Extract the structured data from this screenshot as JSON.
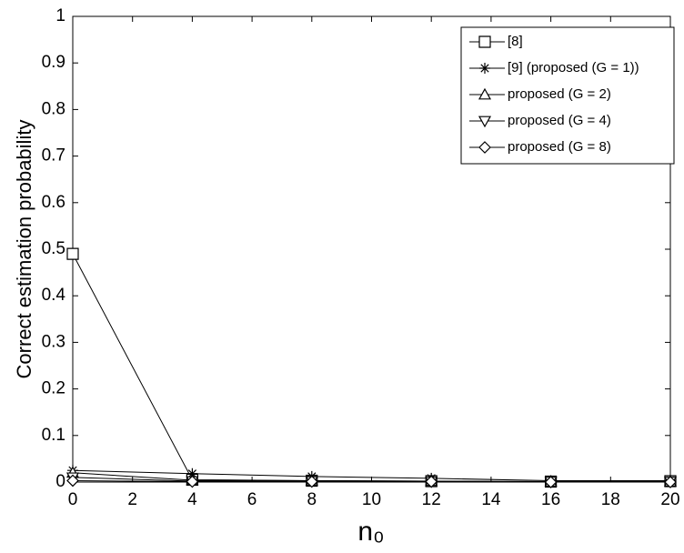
{
  "chart_data": {
    "type": "line",
    "xlabel": "n₀",
    "ylabel": "Correct estimation probability",
    "x": [
      0,
      4,
      8,
      12,
      16,
      20
    ],
    "series": [
      {
        "name": "[8]",
        "color": "#000000",
        "marker": "square",
        "values": [
          0.49,
          0.005,
          0.003,
          0.002,
          0.001,
          0.002
        ]
      },
      {
        "name": "[9] (proposed (G = 1))",
        "color": "#000000",
        "marker": "star",
        "values": [
          0.025,
          0.018,
          0.012,
          0.008,
          0.003,
          0.003
        ]
      },
      {
        "name": "proposed (G = 2)",
        "color": "#000000",
        "marker": "triangle-up",
        "values": [
          0.02,
          0.004,
          0.003,
          0.002,
          0.001,
          0.001
        ]
      },
      {
        "name": "proposed (G = 4)",
        "color": "#000000",
        "marker": "triangle-down",
        "values": [
          0.01,
          0.002,
          0.002,
          0.001,
          0.001,
          0.001
        ]
      },
      {
        "name": "proposed (G = 8)",
        "color": "#000000",
        "marker": "diamond",
        "values": [
          0.003,
          0.001,
          0.001,
          0.001,
          0.0,
          0.0
        ]
      }
    ],
    "xlim": [
      0,
      20
    ],
    "xticks": [
      0,
      2,
      4,
      6,
      8,
      10,
      12,
      14,
      16,
      18,
      20
    ],
    "ylim": [
      0,
      1
    ],
    "yticks": [
      0,
      0.1,
      0.2,
      0.3,
      0.4,
      0.5,
      0.6,
      0.7,
      0.8,
      0.9,
      1
    ],
    "grid": false,
    "legend": "upper right"
  }
}
